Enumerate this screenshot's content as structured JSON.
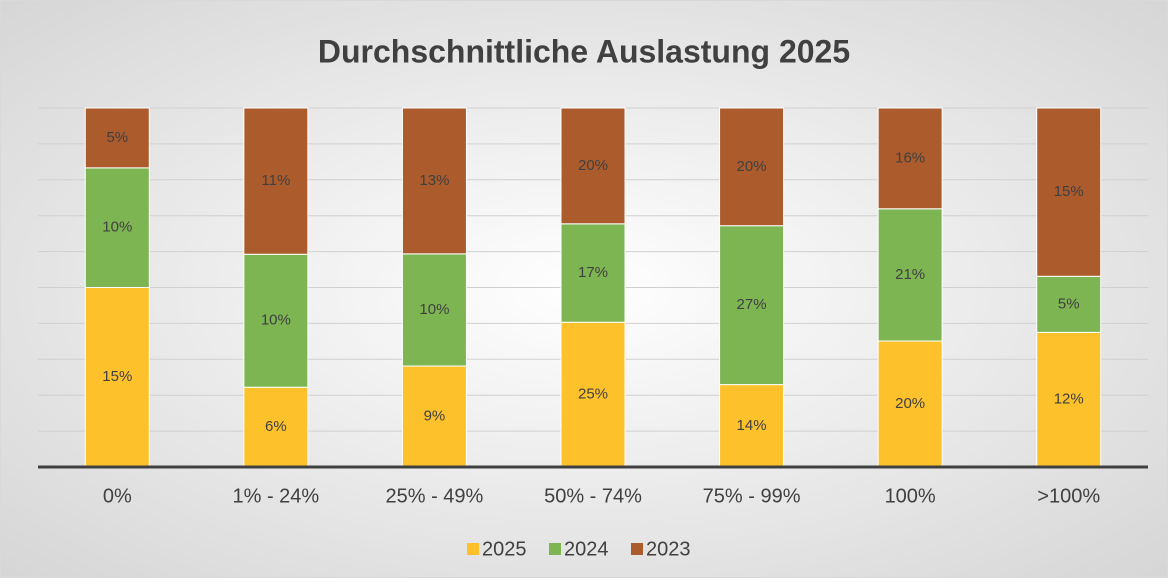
{
  "chart_data": {
    "type": "bar",
    "stacked": "percent",
    "title": "Durchschnittliche Auslastung 2025",
    "categories": [
      "0%",
      "1% - 24%",
      "25% - 49%",
      "50% - 74%",
      "75% - 99%",
      "100%",
      ">100%"
    ],
    "series": [
      {
        "name": "2025",
        "color": "#fdc22b",
        "values": [
          15,
          6,
          9,
          25,
          14,
          20,
          12
        ],
        "value_labels": [
          "15%",
          "6%",
          "9%",
          "25%",
          "14%",
          "20%",
          "12%"
        ]
      },
      {
        "name": "2024",
        "color": "#7db552",
        "values": [
          10,
          10,
          10,
          17,
          27,
          21,
          5
        ],
        "value_labels": [
          "10%",
          "10%",
          "10%",
          "17%",
          "27%",
          "21%",
          "5%"
        ]
      },
      {
        "name": "2023",
        "color": "#ab5b2c",
        "values": [
          5,
          11,
          13,
          20,
          20,
          16,
          15
        ],
        "value_labels": [
          "5%",
          "11%",
          "13%",
          "20%",
          "20%",
          "16%",
          "15%"
        ]
      }
    ],
    "ylim": [
      0,
      100
    ],
    "yticks": [
      0,
      10,
      20,
      30,
      40,
      50,
      60,
      70,
      80,
      90,
      100
    ],
    "show_tick_labels": false,
    "grid": true,
    "legend": "bottom"
  }
}
